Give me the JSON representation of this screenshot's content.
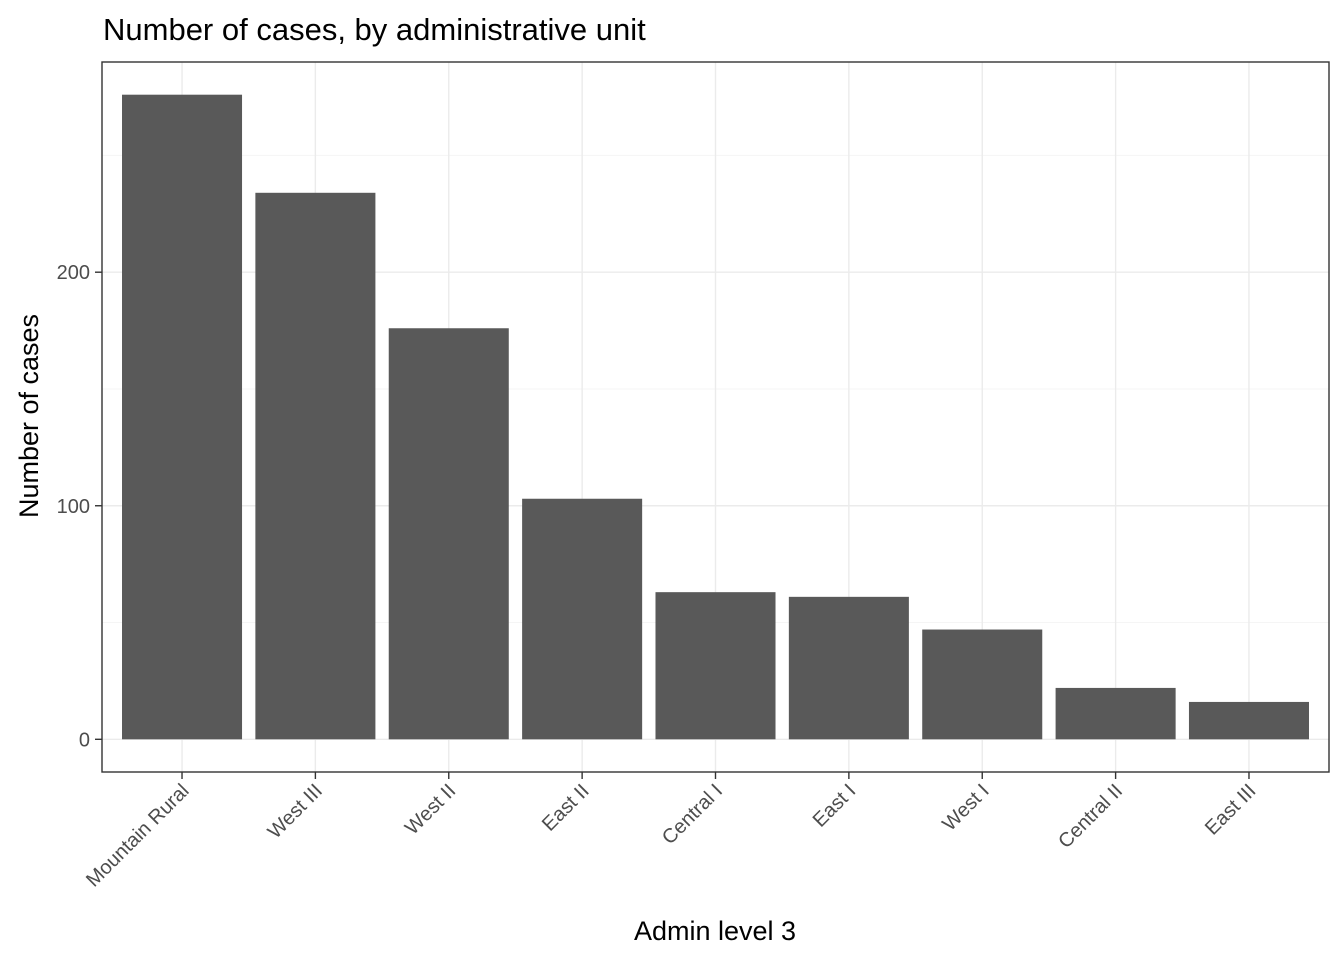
{
  "chart_data": {
    "type": "bar",
    "title": "Number of cases, by administrative unit",
    "xlabel": "Admin level 3",
    "ylabel": "Number of cases",
    "categories": [
      "Mountain Rural",
      "West III",
      "West II",
      "East II",
      "Central I",
      "East I",
      "West I",
      "Central II",
      "East III"
    ],
    "values": [
      276,
      234,
      176,
      103,
      63,
      61,
      47,
      22,
      16
    ],
    "ylim": [
      -14,
      290
    ],
    "yticks": [
      0,
      100,
      200
    ],
    "grid": true,
    "legend": "none",
    "colors": {
      "bar": "#595959",
      "grid_major": "#ebebeb",
      "grid_minor": "#f5f5f5",
      "panel_border": "#333333",
      "tick": "#333333",
      "tick_label": "#4d4d4d"
    }
  }
}
